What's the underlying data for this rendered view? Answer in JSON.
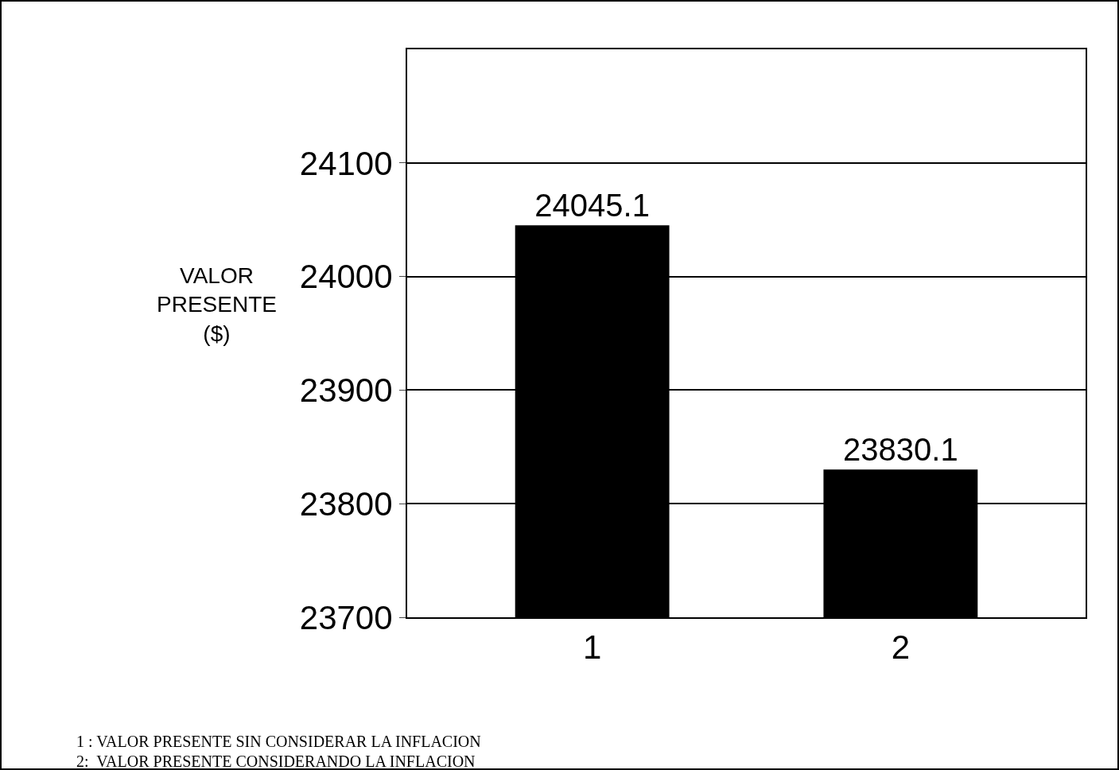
{
  "chart_data": {
    "type": "bar",
    "ylabel": "VALOR PRESENTE ($)",
    "categories": [
      "1",
      "2"
    ],
    "values": [
      24045.1,
      23830.1
    ],
    "color": "#000000",
    "data_labels": true,
    "ylim": [
      23700,
      24200
    ],
    "yticks": [
      23700,
      23800,
      23900,
      24000,
      24100
    ],
    "grid": "y",
    "annotations": [
      "1 : VALOR PRESENTE SIN CONSIDERAR LA INFLACION",
      "2:  VALOR PRESENTE CONSIDERANDO LA INFLACION"
    ]
  }
}
